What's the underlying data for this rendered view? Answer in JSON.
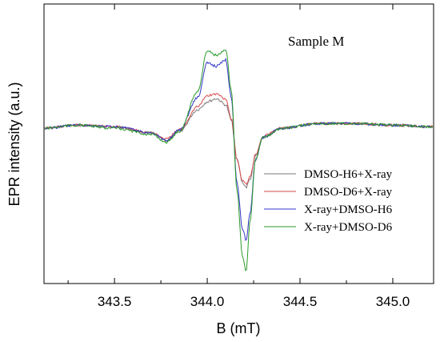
{
  "chart_data": {
    "type": "line",
    "title": "",
    "annotation": "Sample M",
    "xlabel": "B (mT)",
    "ylabel": "EPR intensity (a.u.)",
    "xlim": [
      343.12,
      345.22
    ],
    "ylim": [
      -1.0,
      0.8
    ],
    "x_ticks": [
      343.5,
      344.0,
      344.5,
      345.0
    ],
    "x_tick_labels": [
      "343.5",
      "344.0",
      "344.5",
      "345.0"
    ],
    "y_tick_labels_shown": false,
    "grid": false,
    "legend_position": "lower-right",
    "series": [
      {
        "name": "DMSO-H6+X-ray",
        "color": "#7a7a7a",
        "x": [
          343.12,
          343.3,
          343.5,
          343.7,
          343.78,
          343.85,
          343.95,
          344.0,
          344.05,
          344.1,
          344.13,
          344.16,
          344.19,
          344.21,
          344.23,
          344.26,
          344.3,
          344.4,
          344.6,
          344.8,
          345.0,
          345.2
        ],
        "y": [
          0.0,
          0.02,
          0.01,
          -0.03,
          -0.08,
          -0.02,
          0.12,
          0.17,
          0.19,
          0.15,
          0.05,
          -0.2,
          -0.35,
          -0.38,
          -0.33,
          -0.18,
          -0.06,
          0.0,
          0.03,
          0.03,
          0.02,
          0.01
        ]
      },
      {
        "name": "DMSO-D6+X-ray",
        "color": "#d44a4a",
        "x": [
          343.12,
          343.3,
          343.5,
          343.7,
          343.78,
          343.85,
          343.95,
          344.0,
          344.05,
          344.1,
          344.13,
          344.16,
          344.19,
          344.21,
          344.23,
          344.26,
          344.3,
          344.4,
          344.6,
          344.8,
          345.0,
          345.2
        ],
        "y": [
          0.0,
          0.02,
          0.01,
          -0.03,
          -0.07,
          -0.01,
          0.14,
          0.21,
          0.22,
          0.19,
          0.06,
          -0.2,
          -0.34,
          -0.36,
          -0.31,
          -0.17,
          -0.05,
          0.0,
          0.03,
          0.03,
          0.02,
          0.01
        ]
      },
      {
        "name": "X-ray+DMSO-H6",
        "color": "#3535c8",
        "x": [
          343.12,
          343.3,
          343.5,
          343.7,
          343.78,
          343.85,
          343.95,
          344.0,
          344.05,
          344.1,
          344.13,
          344.16,
          344.19,
          344.21,
          344.23,
          344.26,
          344.3,
          344.4,
          344.6,
          344.8,
          345.0,
          345.2
        ],
        "y": [
          0.0,
          0.02,
          0.01,
          -0.03,
          -0.08,
          -0.01,
          0.2,
          0.42,
          0.4,
          0.44,
          0.2,
          -0.35,
          -0.65,
          -0.72,
          -0.55,
          -0.2,
          -0.06,
          0.0,
          0.03,
          0.03,
          0.02,
          0.01
        ]
      },
      {
        "name": "X-ray+DMSO-D6",
        "color": "#2a9a2a",
        "x": [
          343.12,
          343.3,
          343.5,
          343.7,
          343.78,
          343.85,
          343.95,
          344.0,
          344.05,
          344.1,
          344.13,
          344.16,
          344.19,
          344.21,
          344.23,
          344.26,
          344.3,
          344.4,
          344.6,
          344.8,
          345.0,
          345.2
        ],
        "y": [
          0.0,
          0.02,
          0.0,
          -0.04,
          -0.09,
          -0.02,
          0.24,
          0.5,
          0.47,
          0.5,
          0.24,
          -0.4,
          -0.82,
          -0.92,
          -0.6,
          -0.2,
          -0.06,
          0.0,
          0.03,
          0.03,
          0.02,
          0.01
        ]
      }
    ]
  }
}
